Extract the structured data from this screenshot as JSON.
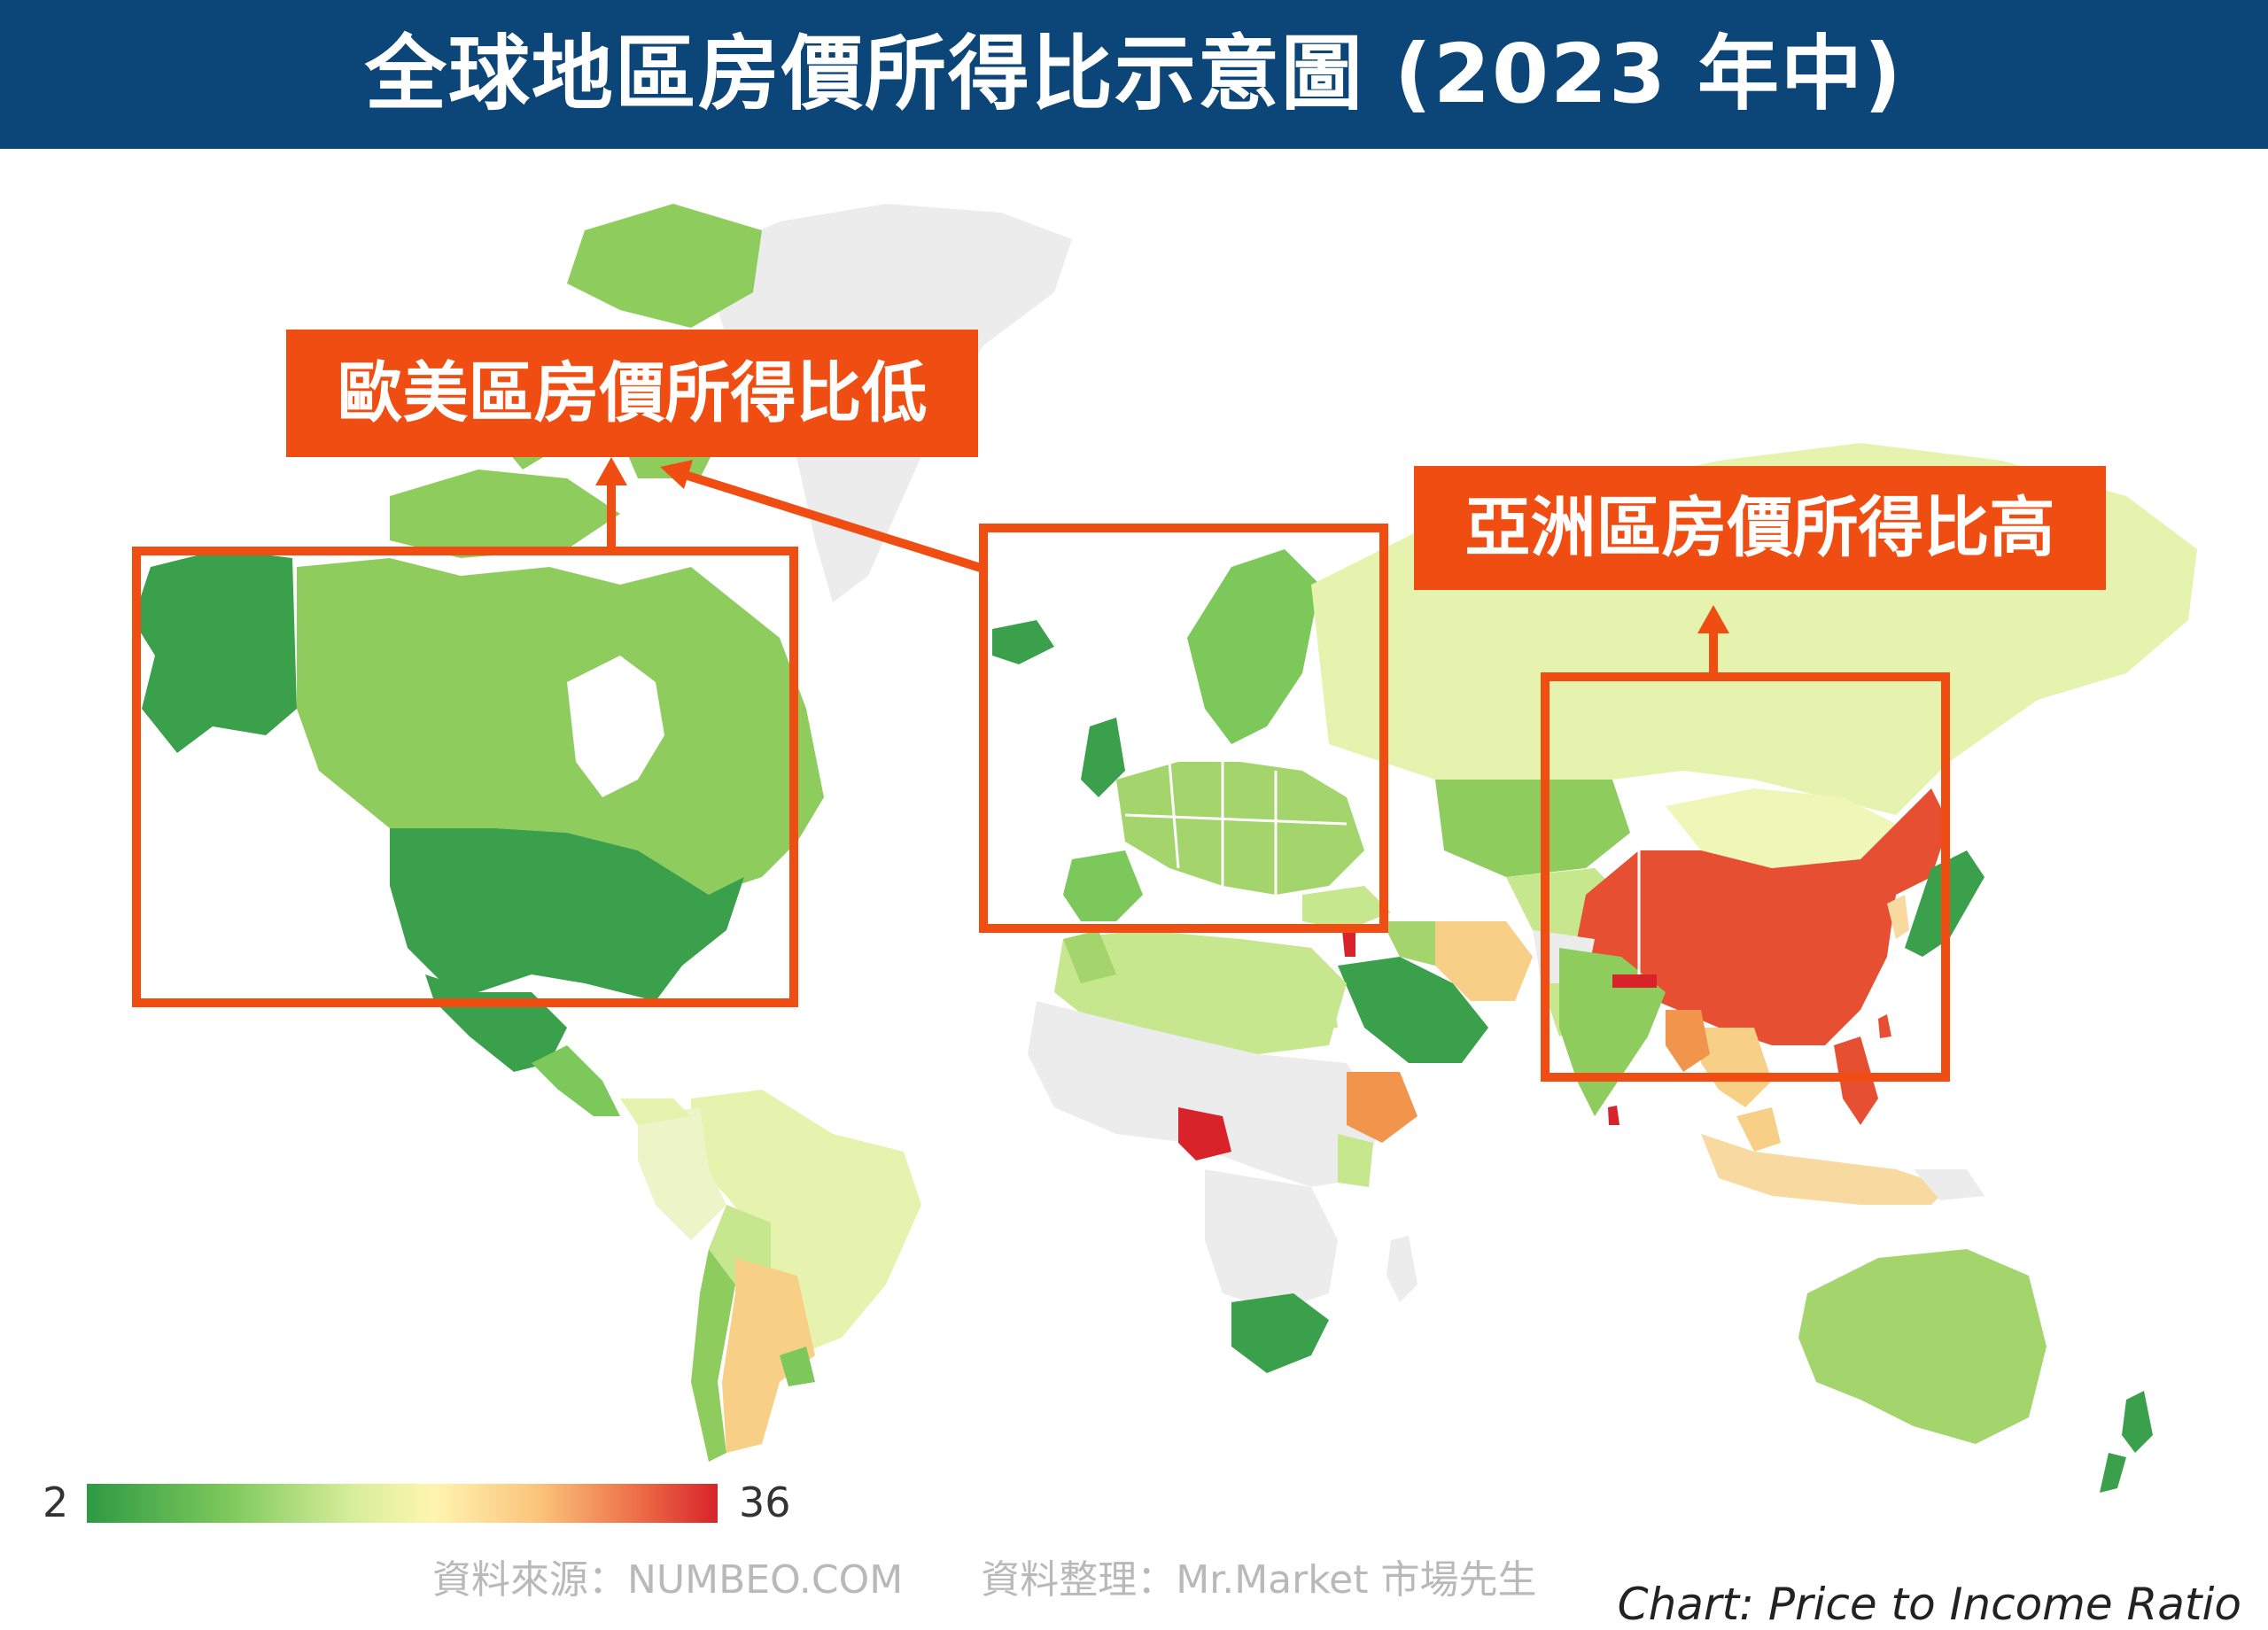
{
  "title": "全球地區房價所得比示意圖 (2023 年中)",
  "callouts": {
    "west_low": "歐美區房價所得比低",
    "asia_high": "亞洲區房價所得比高"
  },
  "legend": {
    "min": "2",
    "max": "36"
  },
  "source_line": "資料來源：NUMBEO.COM　　資料整理：Mr.Market 市場先生",
  "chart_caption": "Chart: Price to Income Ratio",
  "colors": {
    "title_bg": "#0c4577",
    "callout": "#f04d12",
    "no_data": "#ececec",
    "dark_green": "#3ba04b",
    "mid_green": "#8fcc5e",
    "light_green": "#c7e78f",
    "pale_yellow": "#e6f3ae",
    "light_orange": "#f8cf86",
    "orange": "#f2954c",
    "red_orange": "#e64f32",
    "red": "#d8232a"
  }
}
